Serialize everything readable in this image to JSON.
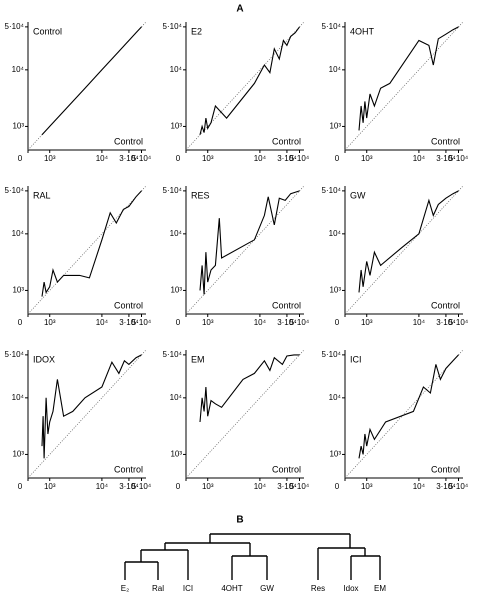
{
  "panel_labels": [
    "A",
    "B"
  ],
  "chart_data": [
    {
      "type": "line",
      "title": "Control",
      "xlabel": "Control",
      "xscale": "asinh",
      "yscale": "asinh",
      "color": "#000000",
      "x": [
        600,
        1000,
        2000,
        5000,
        10000,
        20000,
        30000,
        40000,
        50000
      ],
      "values": [
        600,
        1000,
        2000,
        5000,
        10000,
        20000,
        30000,
        40000,
        50000
      ],
      "xlim": [
        0,
        60000
      ],
      "ylim": [
        0,
        60000
      ],
      "xticks": [
        0,
        {
          "value": 1000,
          "label": "10³"
        },
        {
          "value": 10000,
          "label": "10⁴"
        },
        {
          "value": 30000,
          "label": "3·10⁴"
        },
        {
          "value": 50000,
          "label": "5·10⁴"
        }
      ],
      "yticks": [
        {
          "value": 1000,
          "label": "10³"
        },
        {
          "value": 10000,
          "label": "10⁴"
        },
        {
          "value": 50000,
          "label": "5·10⁴"
        }
      ]
    },
    {
      "type": "line",
      "title": "E2",
      "xlabel": "Control",
      "xscale": "asinh",
      "yscale": "asinh",
      "color": "#000000",
      "x": [
        600,
        700,
        800,
        900,
        1000,
        1200,
        1500,
        2500,
        8000,
        12000,
        15000,
        18000,
        22000,
        26000,
        30000,
        35000,
        42000,
        50000
      ],
      "values": [
        600,
        1000,
        700,
        1500,
        900,
        1200,
        2500,
        1500,
        6000,
        12000,
        9000,
        22000,
        15000,
        30000,
        25000,
        35000,
        40000,
        50000
      ],
      "xlim": [
        0,
        60000
      ],
      "ylim": [
        0,
        60000
      ],
      "xticks": [
        0,
        {
          "value": 1000,
          "label": "10³"
        },
        {
          "value": 10000,
          "label": "10⁴"
        },
        {
          "value": 30000,
          "label": "3·10⁴"
        },
        {
          "value": 50000,
          "label": "5·10⁴"
        }
      ],
      "yticks": [
        {
          "value": 1000,
          "label": "10³"
        },
        {
          "value": 10000,
          "label": "10⁴"
        },
        {
          "value": 50000,
          "label": "5·10⁴"
        }
      ]
    },
    {
      "type": "line",
      "title": "4OHT",
      "xlabel": "Control",
      "xscale": "asinh",
      "yscale": "asinh",
      "color": "#000000",
      "x": [
        600,
        700,
        800,
        900,
        1000,
        1200,
        1500,
        2000,
        3000,
        10000,
        15000,
        18000,
        22000,
        30000,
        40000,
        50000
      ],
      "values": [
        800,
        2500,
        1200,
        3000,
        1500,
        4000,
        2500,
        5000,
        6000,
        30000,
        25000,
        12000,
        32000,
        38000,
        45000,
        50000
      ],
      "xlim": [
        0,
        60000
      ],
      "ylim": [
        0,
        60000
      ],
      "xticks": [
        0,
        {
          "value": 1000,
          "label": "10³"
        },
        {
          "value": 10000,
          "label": "10⁴"
        },
        {
          "value": 30000,
          "label": "3·10⁴"
        },
        {
          "value": 50000,
          "label": "5·10⁴"
        }
      ],
      "yticks": [
        {
          "value": 1000,
          "label": "10³"
        },
        {
          "value": 10000,
          "label": "10⁴"
        },
        {
          "value": 50000,
          "label": "5·10⁴"
        }
      ]
    },
    {
      "type": "line",
      "title": "RAL",
      "xlabel": "Control",
      "xscale": "asinh",
      "yscale": "asinh",
      "color": "#000000",
      "x": [
        600,
        700,
        800,
        1000,
        1200,
        1500,
        2000,
        3000,
        4000,
        6000,
        10000,
        14000,
        18000,
        24000,
        30000,
        40000,
        50000
      ],
      "values": [
        700,
        1500,
        900,
        1200,
        2500,
        1500,
        2000,
        2000,
        2000,
        1800,
        8000,
        22000,
        15000,
        25000,
        28000,
        40000,
        50000
      ],
      "xlim": [
        0,
        60000
      ],
      "ylim": [
        0,
        60000
      ],
      "xticks": [
        0,
        {
          "value": 1000,
          "label": "10³"
        },
        {
          "value": 10000,
          "label": "10⁴"
        },
        {
          "value": 30000,
          "label": "3·10⁴"
        },
        {
          "value": 50000,
          "label": "5·10⁴"
        }
      ],
      "yticks": [
        {
          "value": 1000,
          "label": "10³"
        },
        {
          "value": 10000,
          "label": "10⁴"
        },
        {
          "value": 50000,
          "label": "5·10⁴"
        }
      ]
    },
    {
      "type": "line",
      "title": "RES",
      "xlabel": "Control",
      "xscale": "asinh",
      "yscale": "asinh",
      "color": "#000000",
      "x": [
        600,
        700,
        800,
        900,
        1000,
        1200,
        1500,
        1800,
        2000,
        8000,
        12000,
        14000,
        18000,
        22000,
        28000,
        35000,
        50000
      ],
      "values": [
        1000,
        3000,
        800,
        5000,
        1500,
        2500,
        3000,
        18000,
        4000,
        8000,
        20000,
        40000,
        14000,
        38000,
        35000,
        45000,
        50000
      ],
      "xlim": [
        0,
        60000
      ],
      "ylim": [
        0,
        60000
      ],
      "xticks": [
        0,
        {
          "value": 1000,
          "label": "10³"
        },
        {
          "value": 10000,
          "label": "10⁴"
        },
        {
          "value": 30000,
          "label": "3·10⁴"
        },
        {
          "value": 50000,
          "label": "5·10⁴"
        }
      ],
      "yticks": [
        {
          "value": 1000,
          "label": "10³"
        },
        {
          "value": 10000,
          "label": "10⁴"
        },
        {
          "value": 50000,
          "label": "5·10⁴"
        }
      ]
    },
    {
      "type": "line",
      "title": "GW",
      "xlabel": "Control",
      "xscale": "asinh",
      "yscale": "asinh",
      "color": "#000000",
      "x": [
        600,
        700,
        800,
        1000,
        1200,
        1500,
        2000,
        5000,
        10000,
        15000,
        18000,
        22000,
        30000,
        40000,
        50000
      ],
      "values": [
        900,
        2500,
        1200,
        3500,
        2000,
        5000,
        3000,
        6000,
        10000,
        35000,
        20000,
        30000,
        38000,
        45000,
        50000
      ],
      "xlim": [
        0,
        60000
      ],
      "ylim": [
        0,
        60000
      ],
      "xticks": [
        0,
        {
          "value": 1000,
          "label": "10³"
        },
        {
          "value": 10000,
          "label": "10⁴"
        },
        {
          "value": 30000,
          "label": "3·10⁴"
        },
        {
          "value": 50000,
          "label": "5·10⁴"
        }
      ],
      "yticks": [
        {
          "value": 1000,
          "label": "10³"
        },
        {
          "value": 10000,
          "label": "10⁴"
        },
        {
          "value": 50000,
          "label": "5·10⁴"
        }
      ]
    },
    {
      "type": "line",
      "title": "IDOX",
      "xlabel": "Control",
      "xscale": "asinh",
      "yscale": "asinh",
      "color": "#000000",
      "x": [
        600,
        650,
        700,
        800,
        900,
        1000,
        1200,
        1500,
        2000,
        3000,
        5000,
        10000,
        15000,
        20000,
        25000,
        30000,
        40000,
        50000
      ],
      "values": [
        1500,
        5000,
        800,
        10000,
        2500,
        4000,
        6000,
        20000,
        5000,
        6000,
        10000,
        15000,
        38000,
        25000,
        40000,
        35000,
        45000,
        50000
      ],
      "xlim": [
        0,
        60000
      ],
      "ylim": [
        0,
        60000
      ],
      "xticks": [
        0,
        {
          "value": 1000,
          "label": "10³"
        },
        {
          "value": 10000,
          "label": "10⁴"
        },
        {
          "value": 30000,
          "label": "3·10⁴"
        },
        {
          "value": 50000,
          "label": "5·10⁴"
        }
      ],
      "yticks": [
        {
          "value": 1000,
          "label": "10³"
        },
        {
          "value": 10000,
          "label": "10⁴"
        },
        {
          "value": 50000,
          "label": "5·10⁴"
        }
      ]
    },
    {
      "type": "line",
      "title": "EM",
      "xlabel": "Control",
      "xscale": "asinh",
      "yscale": "asinh",
      "color": "#000000",
      "x": [
        600,
        700,
        800,
        900,
        1000,
        1200,
        1500,
        2000,
        5000,
        8000,
        12000,
        15000,
        18000,
        25000,
        30000,
        40000,
        50000
      ],
      "values": [
        4000,
        10000,
        6000,
        15000,
        5000,
        9000,
        8000,
        7000,
        20000,
        25000,
        40000,
        28000,
        45000,
        35000,
        48000,
        50000,
        50000
      ],
      "xlim": [
        0,
        60000
      ],
      "ylim": [
        0,
        60000
      ],
      "xticks": [
        0,
        {
          "value": 1000,
          "label": "10³"
        },
        {
          "value": 10000,
          "label": "10⁴"
        },
        {
          "value": 30000,
          "label": "3·10⁴"
        },
        {
          "value": 50000,
          "label": "5·10⁴"
        }
      ],
      "yticks": [
        {
          "value": 1000,
          "label": "10³"
        },
        {
          "value": 10000,
          "label": "10⁴"
        },
        {
          "value": 50000,
          "label": "5·10⁴"
        }
      ]
    },
    {
      "type": "line",
      "title": "ICI",
      "xlabel": "Control",
      "xscale": "asinh",
      "yscale": "asinh",
      "color": "#000000",
      "x": [
        600,
        700,
        800,
        900,
        1000,
        1200,
        1500,
        2500,
        8000,
        12000,
        16000,
        20000,
        24000,
        30000,
        40000,
        50000
      ],
      "values": [
        800,
        1500,
        1000,
        2500,
        1500,
        3000,
        2000,
        4000,
        6000,
        15000,
        12000,
        35000,
        20000,
        30000,
        40000,
        50000
      ],
      "xlim": [
        0,
        60000
      ],
      "ylim": [
        0,
        60000
      ],
      "xticks": [
        0,
        {
          "value": 1000,
          "label": "10³"
        },
        {
          "value": 10000,
          "label": "10⁴"
        },
        {
          "value": 30000,
          "label": "3·10⁴"
        },
        {
          "value": 50000,
          "label": "5·10⁴"
        }
      ],
      "yticks": [
        {
          "value": 1000,
          "label": "10³"
        },
        {
          "value": 10000,
          "label": "10⁴"
        },
        {
          "value": 50000,
          "label": "5·10⁴"
        }
      ]
    }
  ],
  "dendrogram": {
    "leaves": [
      "E₂",
      "Ral",
      "ICI",
      "4OHT",
      "GW",
      "Res",
      "Idox",
      "EM"
    ]
  }
}
